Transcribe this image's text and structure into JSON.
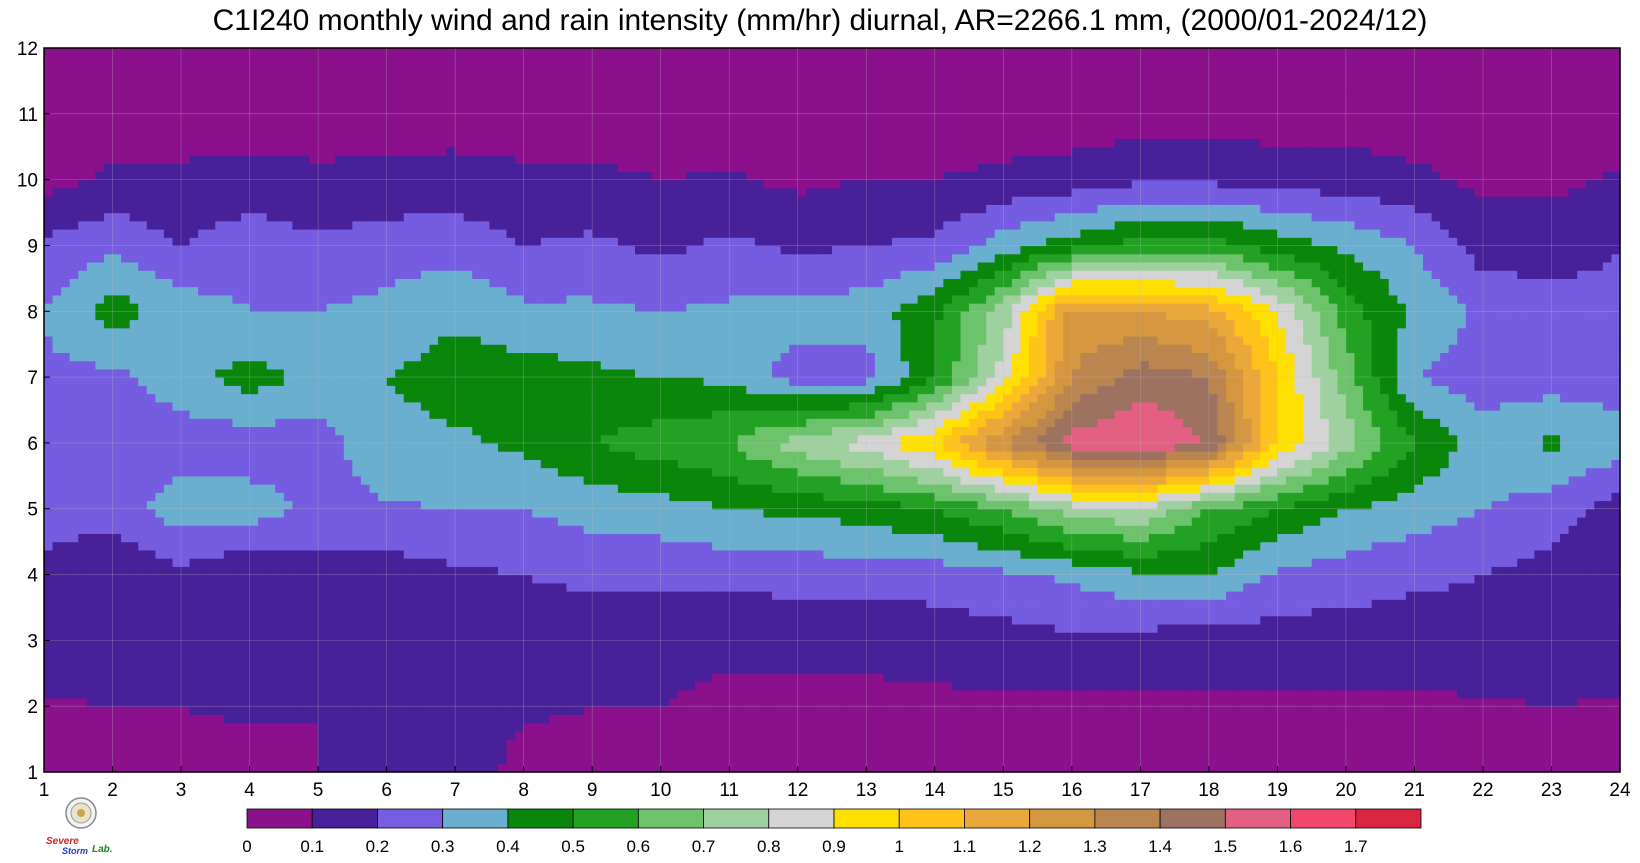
{
  "chart_data": {
    "type": "heatmap",
    "title": "C1I240 monthly wind and rain intensity (mm/hr) diurnal, AR=2266.1 mm, (2000/01-2024/12)",
    "x_ticks": [
      1,
      2,
      3,
      4,
      5,
      6,
      7,
      8,
      9,
      10,
      11,
      12,
      13,
      14,
      15,
      16,
      17,
      18,
      19,
      20,
      21,
      22,
      23,
      24
    ],
    "y_ticks": [
      1,
      2,
      3,
      4,
      5,
      6,
      7,
      8,
      9,
      10,
      11,
      12
    ],
    "xlim": [
      1,
      24
    ],
    "ylim": [
      1,
      12
    ],
    "grid": true,
    "colorbar": {
      "levels": [
        0,
        0.1,
        0.2,
        0.3,
        0.4,
        0.5,
        0.6,
        0.7,
        0.8,
        0.9,
        1,
        1.1,
        1.2,
        1.3,
        1.4,
        1.5,
        1.6,
        1.7
      ],
      "labels": [
        "0",
        "0.1",
        "0.2",
        "0.3",
        "0.4",
        "0.5",
        "0.6",
        "0.7",
        "0.8",
        "0.9",
        "1",
        "1.1",
        "1.2",
        "1.3",
        "1.4",
        "1.5",
        "1.6",
        "1.7"
      ],
      "colors": [
        "#8b108b",
        "#48209a",
        "#755ce0",
        "#6aaed0",
        "#0a870a",
        "#23a123",
        "#6cc36c",
        "#9fd09f",
        "#d4d4d4",
        "#ffe000",
        "#ffc21a",
        "#eaa83a",
        "#d4973f",
        "#bb8550",
        "#9e7260",
        "#e36082",
        "#f0476a",
        "#d9253f"
      ]
    },
    "contour_color": "#f5a623",
    "field": {
      "months": [
        1,
        2,
        3,
        4,
        5,
        6,
        7,
        8,
        9,
        10,
        11,
        12
      ],
      "hours": [
        1,
        2,
        3,
        4,
        5,
        6,
        7,
        8,
        9,
        10,
        11,
        12,
        13,
        14,
        15,
        16,
        17,
        18,
        19,
        20,
        21,
        22,
        23,
        24
      ],
      "values": [
        [
          0.05,
          0.05,
          0.05,
          0.05,
          0.1,
          0.15,
          0.19,
          0.05,
          0.05,
          0.05,
          0.05,
          0.05,
          0.05,
          0.05,
          0.05,
          0.05,
          0.05,
          0.05,
          0.05,
          0.05,
          0.05,
          0.05,
          0.05,
          0.05
        ],
        [
          0.09,
          0.1,
          0.1,
          0.12,
          0.1,
          0.15,
          0.15,
          0.12,
          0.1,
          0.1,
          0.08,
          0.08,
          0.08,
          0.08,
          0.08,
          0.08,
          0.08,
          0.08,
          0.08,
          0.08,
          0.08,
          0.09,
          0.1,
          0.09
        ],
        [
          0.15,
          0.17,
          0.15,
          0.16,
          0.2,
          0.2,
          0.18,
          0.15,
          0.14,
          0.12,
          0.12,
          0.12,
          0.12,
          0.14,
          0.16,
          0.18,
          0.16,
          0.15,
          0.15,
          0.15,
          0.15,
          0.16,
          0.16,
          0.15
        ],
        [
          0.18,
          0.1,
          0.18,
          0.1,
          0.15,
          0.15,
          0.18,
          0.2,
          0.22,
          0.22,
          0.23,
          0.24,
          0.24,
          0.25,
          0.28,
          0.32,
          0.38,
          0.4,
          0.28,
          0.25,
          0.22,
          0.2,
          0.16,
          0.1
        ],
        [
          0.24,
          0.25,
          0.35,
          0.35,
          0.28,
          0.29,
          0.3,
          0.3,
          0.34,
          0.36,
          0.4,
          0.42,
          0.45,
          0.5,
          0.6,
          0.75,
          0.8,
          0.6,
          0.5,
          0.4,
          0.35,
          0.3,
          0.25,
          0.15
        ],
        [
          0.25,
          0.26,
          0.25,
          0.24,
          0.26,
          0.36,
          0.38,
          0.42,
          0.5,
          0.55,
          0.6,
          0.75,
          0.85,
          1.0,
          1.3,
          1.55,
          1.6,
          1.5,
          1.0,
          0.75,
          0.5,
          0.35,
          0.42,
          0.35
        ],
        [
          0.28,
          0.27,
          0.35,
          0.45,
          0.36,
          0.4,
          0.45,
          0.45,
          0.42,
          0.4,
          0.38,
          0.25,
          0.25,
          0.5,
          0.85,
          1.3,
          1.45,
          1.4,
          1.0,
          0.65,
          0.3,
          0.25,
          0.25,
          0.25
        ],
        [
          0.3,
          0.45,
          0.35,
          0.3,
          0.3,
          0.33,
          0.38,
          0.32,
          0.32,
          0.3,
          0.32,
          0.34,
          0.35,
          0.48,
          0.75,
          1.25,
          1.2,
          1.15,
          0.9,
          0.55,
          0.38,
          0.28,
          0.25,
          0.22
        ],
        [
          0.22,
          0.28,
          0.2,
          0.26,
          0.22,
          0.25,
          0.26,
          0.2,
          0.22,
          0.18,
          0.22,
          0.18,
          0.2,
          0.22,
          0.35,
          0.45,
          0.55,
          0.55,
          0.45,
          0.38,
          0.3,
          0.15,
          0.15,
          0.2
        ],
        [
          0.06,
          0.12,
          0.12,
          0.14,
          0.12,
          0.13,
          0.14,
          0.12,
          0.12,
          0.1,
          0.11,
          0.08,
          0.1,
          0.1,
          0.12,
          0.14,
          0.18,
          0.18,
          0.16,
          0.15,
          0.12,
          0.08,
          0.08,
          0.11
        ],
        [
          0.05,
          0.05,
          0.05,
          0.05,
          0.05,
          0.05,
          0.05,
          0.05,
          0.05,
          0.05,
          0.05,
          0.05,
          0.05,
          0.05,
          0.05,
          0.05,
          0.05,
          0.05,
          0.05,
          0.05,
          0.05,
          0.05,
          0.05,
          0.05
        ],
        [
          0.05,
          0.05,
          0.05,
          0.05,
          0.05,
          0.05,
          0.05,
          0.05,
          0.05,
          0.05,
          0.05,
          0.05,
          0.05,
          0.05,
          0.05,
          0.05,
          0.05,
          0.05,
          0.05,
          0.05,
          0.05,
          0.05,
          0.05,
          0.05
        ]
      ]
    }
  },
  "logo": {
    "text_line1": "Severe",
    "text_line2": "Storm",
    "text_line3": "Lab."
  }
}
